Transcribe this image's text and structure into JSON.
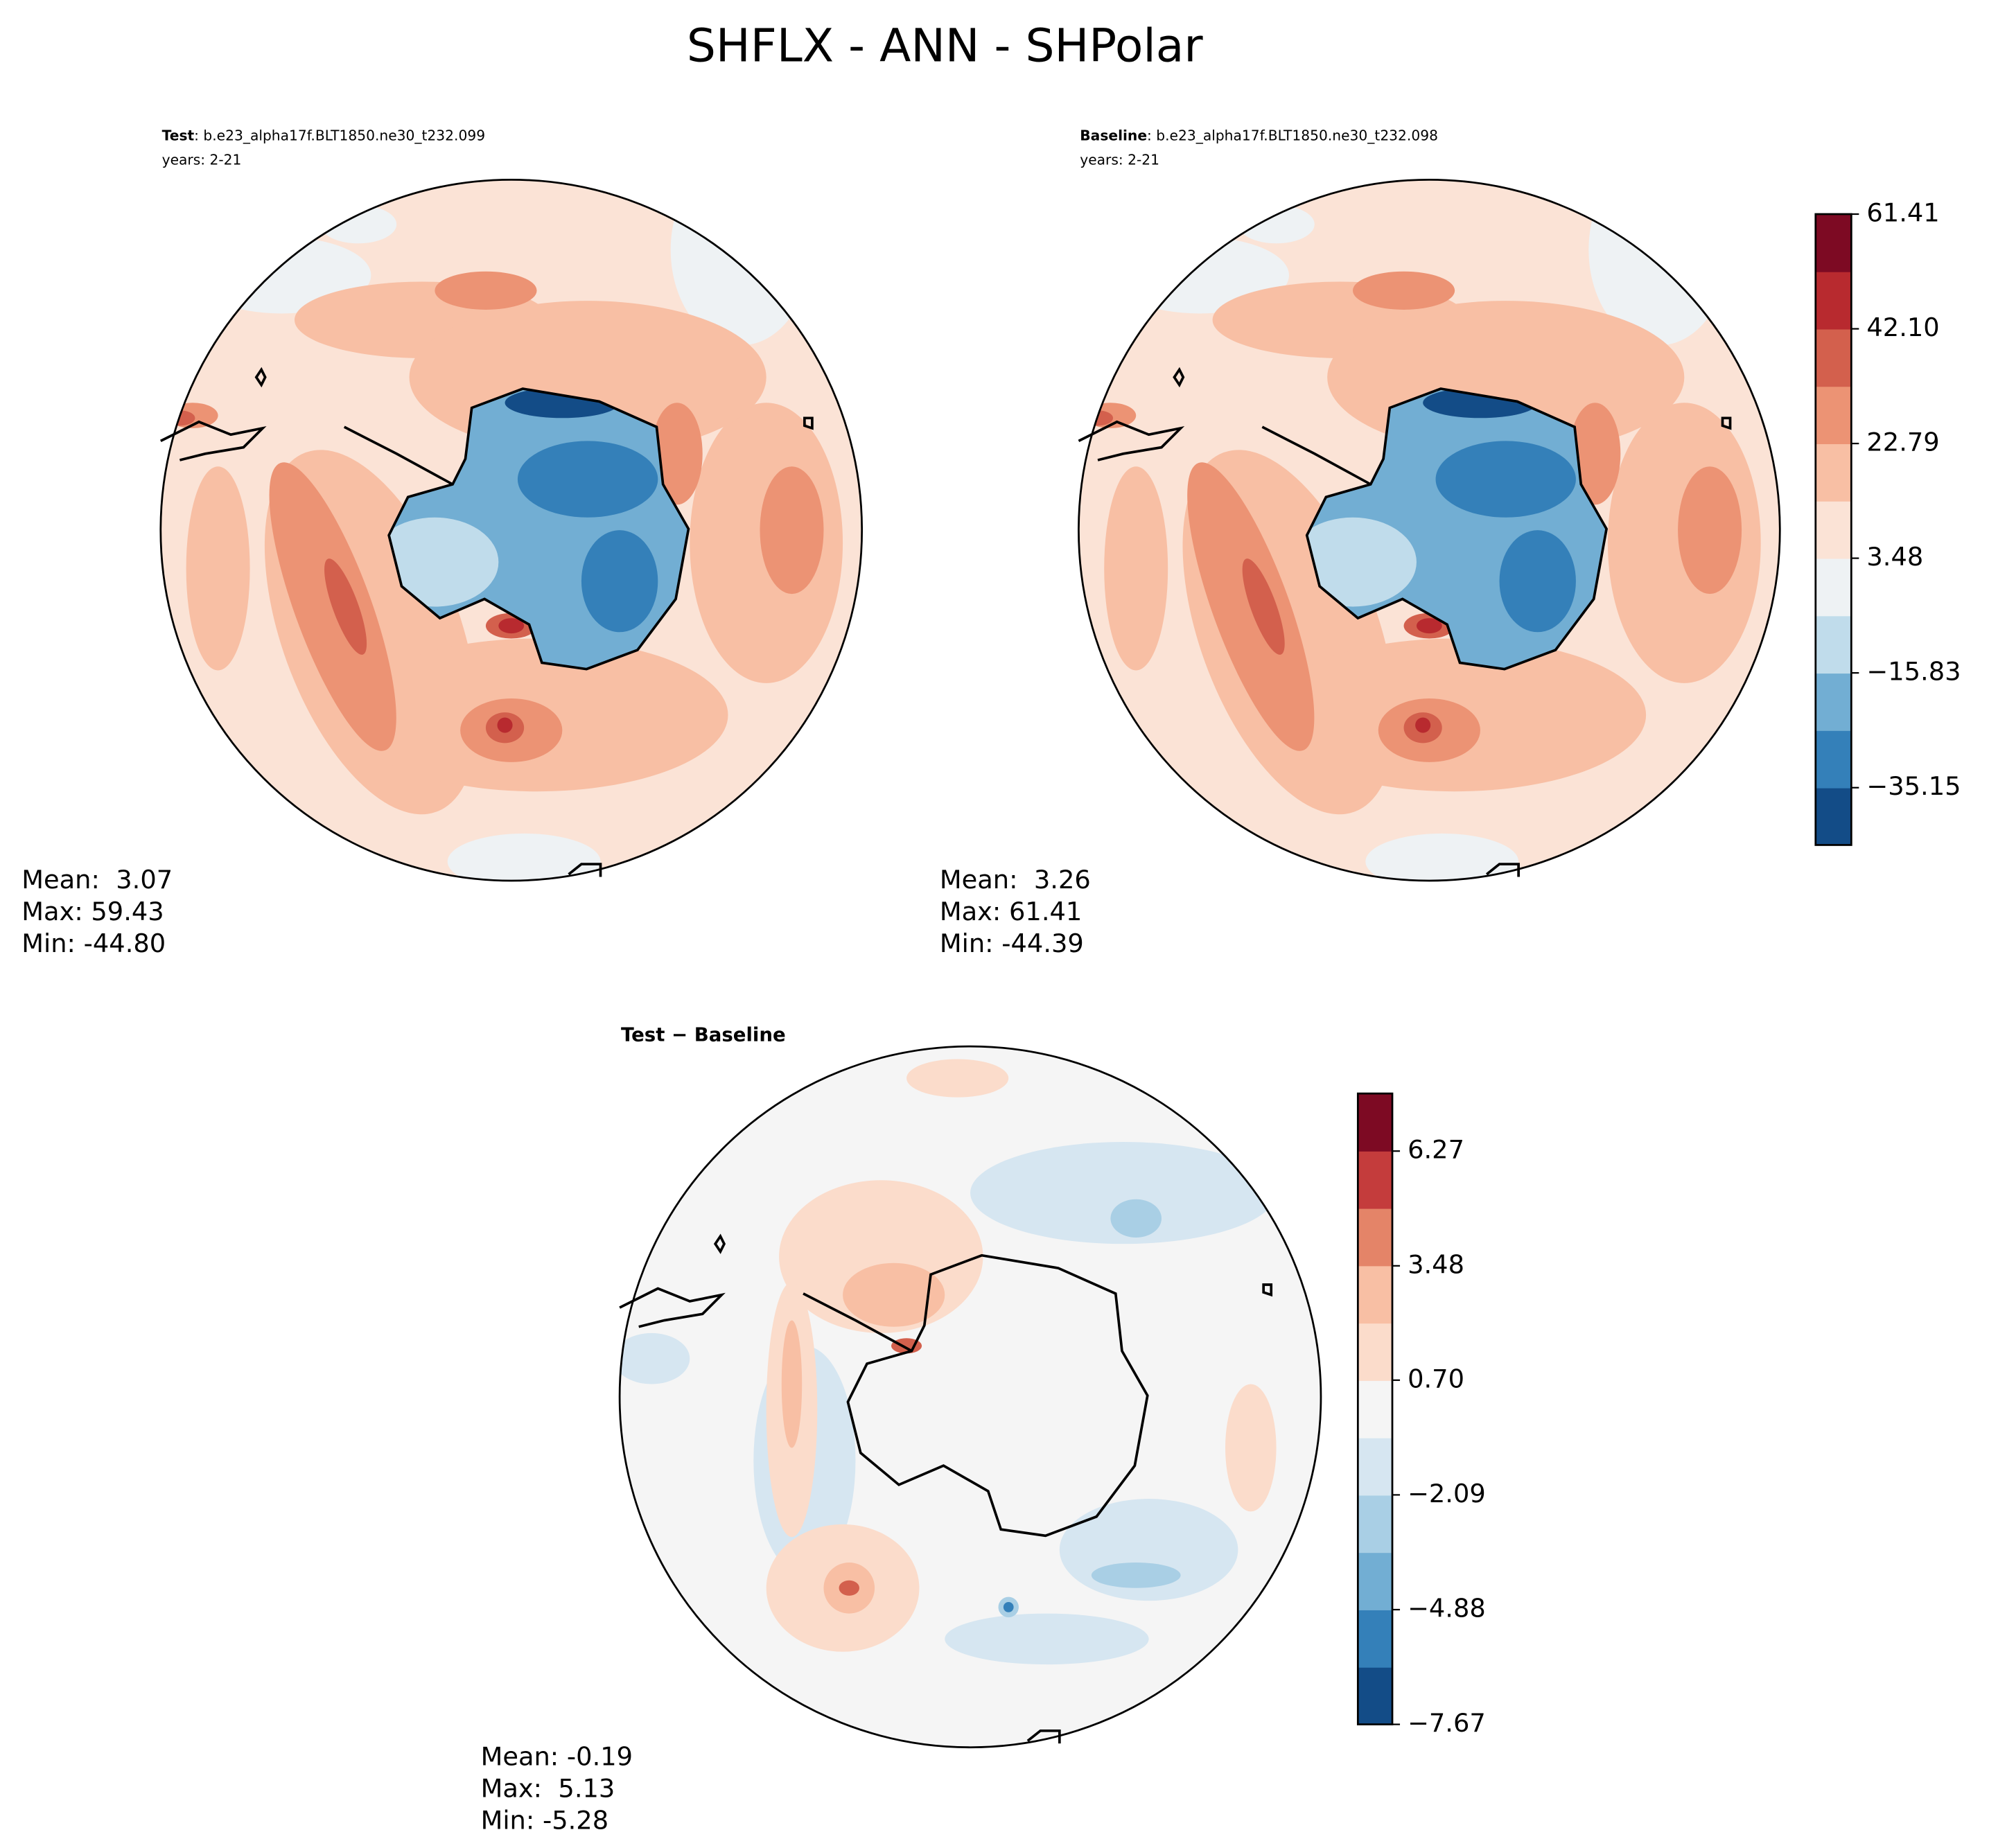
{
  "title": "SHFLX - ANN - SHPolar",
  "chart_data": [
    {
      "type": "map",
      "name": "Test",
      "title": ": b.e23_alpha17f.BLT1850.ne30_t232.099",
      "subtitle": "years: 2-21",
      "stats": [
        "Mean:  3.07",
        "Max: 59.43",
        "Min: -44.80"
      ]
    },
    {
      "type": "map",
      "name": "Baseline",
      "title": ": b.e23_alpha17f.BLT1850.ne30_t232.098",
      "subtitle": "years: 2-21",
      "stats": [
        "Mean:  3.26",
        "Max: 61.41",
        "Min: -44.39"
      ],
      "colorbar": {
        "ylim": [
          -44.8,
          61.41
        ],
        "yticks": [
          61.41,
          {
            "value": 42.1,
            "label": "42.10"
          },
          22.79,
          3.48,
          {
            "value": -15.83,
            "label": "−15.83"
          },
          {
            "value": -35.15,
            "label": "−35.15"
          }
        ],
        "colors": [
          "#134c87",
          "#3480b9",
          "#72aed3",
          "#c0dceb",
          "#eef2f4",
          "#fbe3d6",
          "#f8bfa4",
          "#ec9374",
          "#d3604d",
          "#b82a2f",
          "#7d0a23"
        ]
      }
    },
    {
      "type": "map",
      "title": "Test − Baseline",
      "stats": [
        "Mean: -0.19",
        "Max:  5.13",
        "Min: -5.28"
      ],
      "colorbar": {
        "ylim": [
          -7.67,
          7.67
        ],
        "yticks": [
          6.27,
          3.48,
          {
            "value": 0.7,
            "label": "0.70"
          },
          {
            "value": -2.09,
            "label": "−2.09"
          },
          {
            "value": -4.88,
            "label": "−4.88"
          },
          {
            "value": -7.67,
            "label": "−7.67"
          }
        ],
        "colors": [
          "#134c87",
          "#3480b9",
          "#72aed3",
          "#a9cfe5",
          "#d6e6f1",
          "#f5f5f5",
          "#fbdccb",
          "#f8bfa4",
          "#e48468",
          "#c43c3c",
          "#7d0a23"
        ]
      }
    }
  ]
}
